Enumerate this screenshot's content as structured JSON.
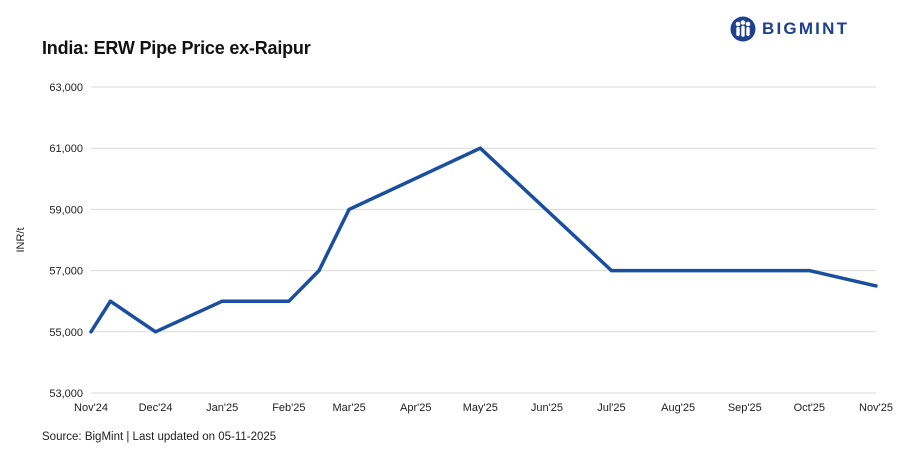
{
  "header": {
    "title": "India: ERW Pipe Price ex-Raipur",
    "logo_text": "BIGMINT"
  },
  "footer": {
    "source": "Source: BigMint | Last updated on 05-11-2025"
  },
  "colors": {
    "series_line": "#1a4e9e",
    "brand": "#1f3f8f",
    "gridline": "#d9d9d9"
  },
  "icons": {
    "logo_icon": "bigmint-people-icon"
  },
  "chart_data": {
    "type": "line",
    "title": "India: ERW Pipe Price ex-Raipur",
    "xlabel": "",
    "ylabel": "INR/t",
    "ylim": [
      53000,
      63000
    ],
    "yticks": [
      53000,
      55000,
      57000,
      59000,
      61000,
      63000
    ],
    "ytick_labels": [
      "53,000",
      "55,000",
      "57,000",
      "59,000",
      "61,000",
      "63,000"
    ],
    "categories": [
      "Nov'24",
      "Dec'24",
      "Jan'25",
      "Feb'25",
      "Mar'25",
      "Apr'25",
      "May'25",
      "Jun'25",
      "Jul'25",
      "Aug'25",
      "Sep'25",
      "Oct'25",
      "Nov'25"
    ],
    "grid": true,
    "legend": "none",
    "series": [
      {
        "points": [
          {
            "x": "2024-11-01",
            "y": 55000
          },
          {
            "x": "2024-11-10",
            "y": 56000
          },
          {
            "x": "2024-12-01",
            "y": 55000
          },
          {
            "x": "2025-01-01",
            "y": 56000
          },
          {
            "x": "2025-02-01",
            "y": 56000
          },
          {
            "x": "2025-02-15",
            "y": 57000
          },
          {
            "x": "2025-03-01",
            "y": 59000
          },
          {
            "x": "2025-05-01",
            "y": 61000
          },
          {
            "x": "2025-07-01",
            "y": 57000
          },
          {
            "x": "2025-10-01",
            "y": 57000
          },
          {
            "x": "2025-11-01",
            "y": 56500
          }
        ]
      }
    ]
  }
}
